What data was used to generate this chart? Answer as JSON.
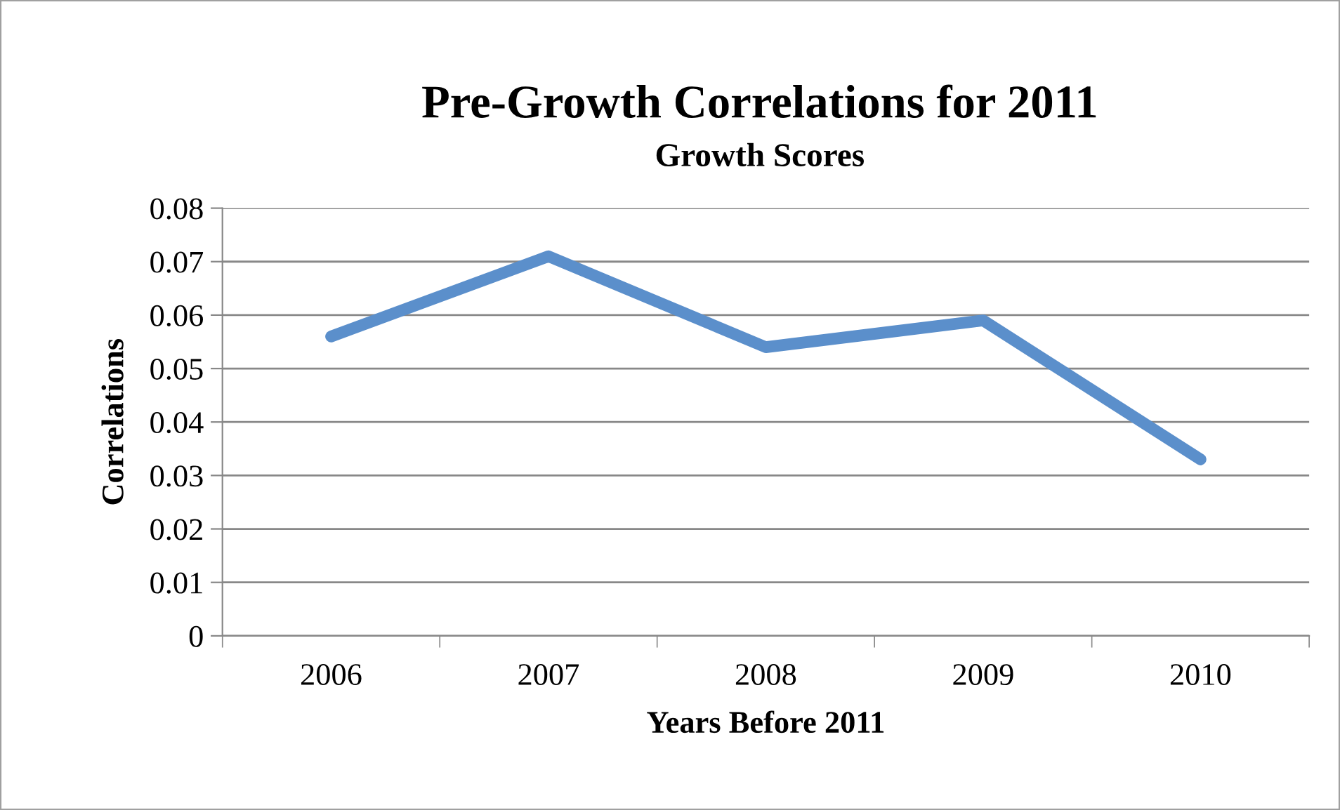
{
  "chart_data": {
    "type": "line",
    "title": "Pre-Growth Correlations for 2011",
    "subtitle": "Growth Scores",
    "xlabel": "Years Before 2011",
    "ylabel": "Correlations",
    "categories": [
      "2006",
      "2007",
      "2008",
      "2009",
      "2010"
    ],
    "series": [
      {
        "color": "#5b8fcb",
        "values": [
          0.056,
          0.071,
          0.054,
          0.059,
          0.033
        ]
      }
    ],
    "ylim": [
      0,
      0.08
    ],
    "yticks": [
      0,
      0.01,
      0.02,
      0.03,
      0.04,
      0.05,
      0.06,
      0.07,
      0.08
    ],
    "grid": "y",
    "legend": false,
    "marker": "none",
    "line_style": "solid"
  }
}
